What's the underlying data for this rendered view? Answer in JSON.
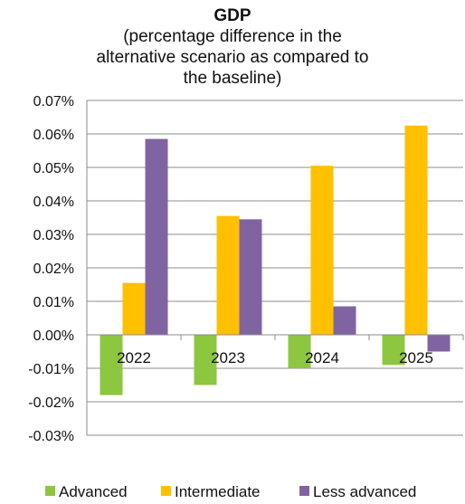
{
  "chart_data": {
    "type": "bar",
    "title": "GDP",
    "subtitle_lines": [
      "(percentage difference in the",
      "alternative scenario as compared to",
      "the baseline)"
    ],
    "xlabel": "",
    "ylabel": "",
    "categories": [
      "2022",
      "2023",
      "2024",
      "2025"
    ],
    "series": [
      {
        "name": "Advanced",
        "color": "#8dc63f",
        "values": [
          -0.018,
          -0.015,
          -0.01,
          -0.009
        ]
      },
      {
        "name": "Intermediate",
        "color": "#ffc000",
        "values": [
          0.0155,
          0.0355,
          0.0505,
          0.0625
        ]
      },
      {
        "name": "Less advanced",
        "color": "#8064a2",
        "values": [
          0.0585,
          0.0345,
          0.0085,
          -0.005
        ]
      }
    ],
    "ylim": [
      -0.03,
      0.07
    ],
    "yticks": [
      0.07,
      0.06,
      0.05,
      0.04,
      0.03,
      0.02,
      0.01,
      0.0,
      -0.01,
      -0.02,
      -0.03
    ],
    "ytick_labels": [
      "0.07%",
      "0.06%",
      "0.05%",
      "0.04%",
      "0.03%",
      "0.02%",
      "0.01%",
      "0.00%",
      "-0.01%",
      "-0.02%",
      "-0.03%"
    ],
    "grid": "horizontal",
    "legend_position": "bottom"
  }
}
